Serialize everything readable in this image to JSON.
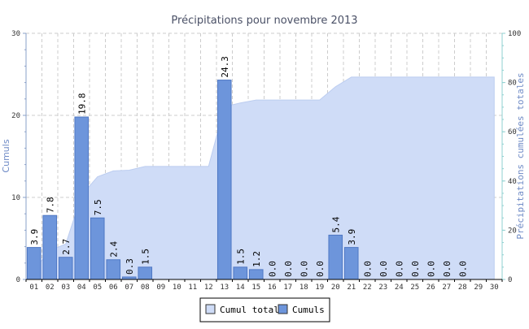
{
  "chart_data": {
    "type": "bar",
    "title": "Précipitations pour novembre 2013",
    "ylabel_left": "Cumuls",
    "ylabel_right": "Précipitations cumulées totales",
    "ylim_left": [
      0,
      30
    ],
    "ylim_right": [
      0,
      100
    ],
    "yticks_left": [
      "0",
      "10",
      "20",
      "30"
    ],
    "yticks_right": [
      "0",
      "20",
      "40",
      "60",
      "80",
      "100"
    ],
    "grid": true,
    "legend_position": "bottom-center",
    "categories": [
      "01",
      "02",
      "03",
      "04",
      "05",
      "06",
      "07",
      "08",
      "09",
      "10",
      "11",
      "12",
      "13",
      "14",
      "15",
      "16",
      "17",
      "18",
      "19",
      "20",
      "21",
      "22",
      "23",
      "24",
      "25",
      "26",
      "27",
      "28",
      "29",
      "30"
    ],
    "series": [
      {
        "name": "Cumul total",
        "type": "area",
        "axis": "right",
        "color": "#cfdcf7",
        "values": [
          3.9,
          11.7,
          14.4,
          34.2,
          41.7,
          44.1,
          44.4,
          45.9,
          45.9,
          45.9,
          45.9,
          45.9,
          70.2,
          71.7,
          72.9,
          72.9,
          72.9,
          72.9,
          72.9,
          78.3,
          82.2,
          82.2,
          82.2,
          82.2,
          82.2,
          82.2,
          82.2,
          82.2,
          82.2,
          82.2
        ]
      },
      {
        "name": "Cumuls",
        "type": "bar",
        "axis": "left",
        "color": "#6d95db",
        "values": [
          3.9,
          7.8,
          2.7,
          19.8,
          7.5,
          2.4,
          0.3,
          1.5,
          null,
          null,
          null,
          null,
          24.3,
          1.5,
          1.2,
          0.0,
          0.0,
          0.0,
          0.0,
          5.4,
          3.9,
          0.0,
          0.0,
          0.0,
          0.0,
          0.0,
          0.0,
          0.0,
          null,
          null
        ],
        "labels": [
          "3.9",
          "7.8",
          "2.7",
          "19.8",
          "7.5",
          "2.4",
          "0.3",
          "1.5",
          "",
          "",
          "",
          "",
          "24.3",
          "1.5",
          "1.2",
          "0.0",
          "0.0",
          "0.0",
          "0.0",
          "5.4",
          "3.9",
          "0.0",
          "0.0",
          "0.0",
          "0.0",
          "0.0",
          "0.0",
          "0.0",
          "",
          ""
        ]
      }
    ],
    "colors": {
      "axis_left": "#8aa0c8",
      "axis_right": "#8fd0d0",
      "grid": "#cccccc",
      "bar": "#6d95db",
      "bar_stroke": "#4f78c4",
      "area": "#cfdcf7",
      "area_stroke": "#bccdf0"
    }
  }
}
